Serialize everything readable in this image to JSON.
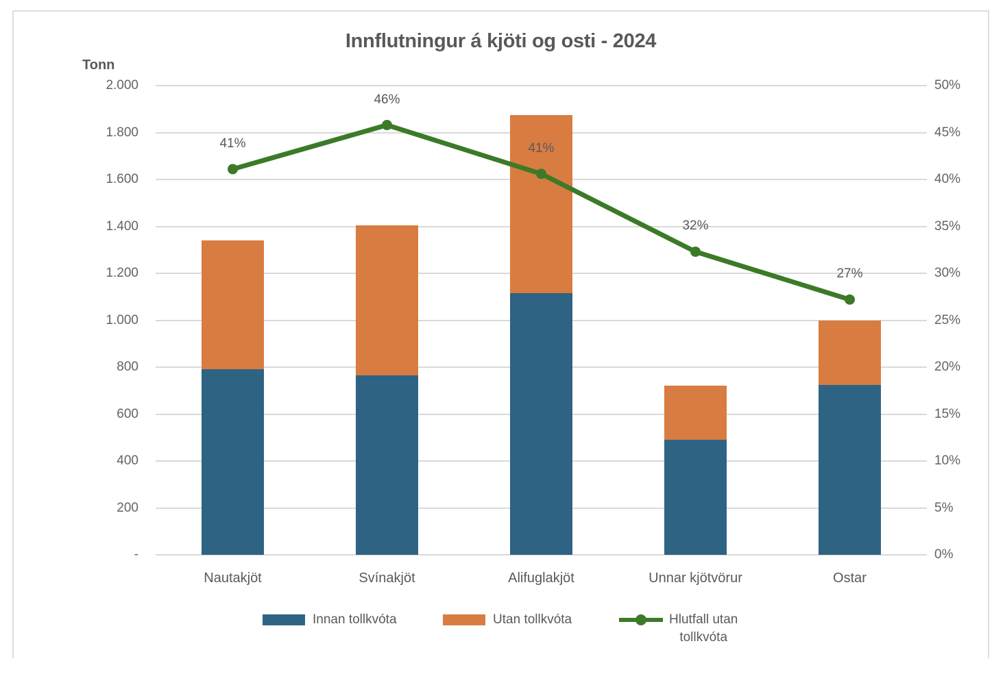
{
  "chart_data": {
    "type": "combo-stacked-bar-line",
    "title": "Innflutningur á kjöti og osti - 2024",
    "categories": [
      "Nautakjöt",
      "Svínakjöt",
      "Alifuglakjöt",
      "Unnar kjötvörur",
      "Ostar"
    ],
    "series": [
      {
        "name": "Innan tollkvóta",
        "type": "bar",
        "stack": "a",
        "axis": "left",
        "color": "#2e6384",
        "values": [
          790,
          765,
          1115,
          490,
          725
        ]
      },
      {
        "name": "Utan tollkvóta",
        "type": "bar",
        "stack": "a",
        "axis": "left",
        "color": "#d97c41",
        "values": [
          550,
          640,
          760,
          230,
          275
        ]
      },
      {
        "name": "Hlutfall utan tollkvóta",
        "type": "line",
        "axis": "right",
        "color": "#3c7a28",
        "values": [
          41.1,
          45.8,
          40.6,
          32.3,
          27.2
        ],
        "labels": [
          "41%",
          "46%",
          "41%",
          "32%",
          "27%"
        ]
      }
    ],
    "left_axis": {
      "title": "Tonn",
      "min": 0,
      "max": 2000,
      "step": 200,
      "ticks": [
        "-",
        "200",
        "400",
        "600",
        "800",
        "1.000",
        "1.200",
        "1.400",
        "1.600",
        "1.800",
        "2.000"
      ]
    },
    "right_axis": {
      "min": 0,
      "max": 50,
      "step": 5,
      "ticks": [
        "0%",
        "5%",
        "10%",
        "15%",
        "20%",
        "25%",
        "30%",
        "35%",
        "40%",
        "45%",
        "50%"
      ]
    },
    "grid": true,
    "legend_position": "bottom"
  },
  "legend": {
    "hlutfall_line1": "Hlutfall utan",
    "hlutfall_line2": "tollkvóta"
  },
  "colors": {
    "bar_blue": "#2e6384",
    "bar_orange": "#d97c41",
    "line_green": "#3c7a28",
    "grid": "#d9d9d9",
    "text": "#595959",
    "frame_border": "#dcdcdc"
  }
}
